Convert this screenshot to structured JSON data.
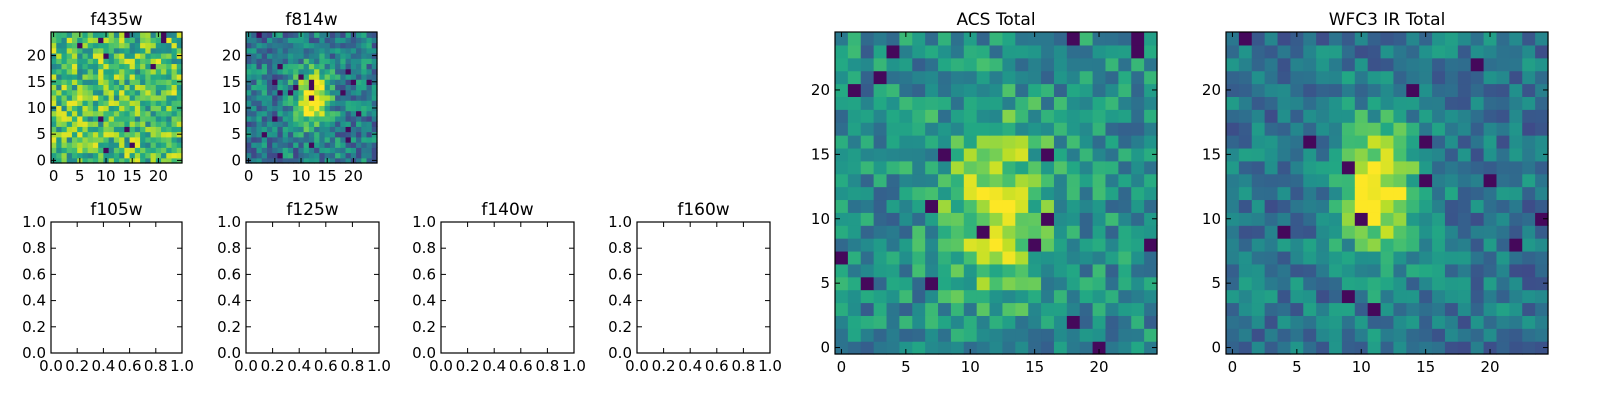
{
  "figure": {
    "background": "#ffffff",
    "colormap": "viridis"
  },
  "chart_data": [
    {
      "type": "heatmap",
      "id": "f435w",
      "title": "f435w",
      "grid": [
        25,
        25
      ],
      "xlim": [
        -0.5,
        24.5
      ],
      "ylim": [
        -0.5,
        24.5
      ],
      "xticks": [
        0,
        5,
        10,
        15,
        20
      ],
      "yticks": [
        0,
        5,
        10,
        15,
        20
      ],
      "xticklabels": [
        "0",
        "5",
        "10",
        "15",
        "20"
      ],
      "yticklabels": [
        "0",
        "5",
        "10",
        "15",
        "20"
      ],
      "pattern": {
        "seed": 11,
        "base": 0.7,
        "noise": 0.55,
        "blob": 0.0,
        "cx": 12,
        "cy": 12,
        "sx": 4,
        "sy": 4,
        "dark": 0.02
      }
    },
    {
      "type": "heatmap",
      "id": "f814w",
      "title": "f814w",
      "grid": [
        25,
        25
      ],
      "xlim": [
        -0.5,
        24.5
      ],
      "ylim": [
        -0.5,
        24.5
      ],
      "xticks": [
        0,
        5,
        10,
        15,
        20
      ],
      "yticks": [
        0,
        5,
        10,
        15,
        20
      ],
      "xticklabels": [
        "0",
        "5",
        "10",
        "15",
        "20"
      ],
      "yticklabels": [
        "0",
        "5",
        "10",
        "15",
        "20"
      ],
      "pattern": {
        "seed": 23,
        "base": 0.42,
        "noise": 0.45,
        "blob": 0.6,
        "cx": 12,
        "cy": 12,
        "sx": 2.5,
        "sy": 4,
        "dark": 0.03
      }
    },
    {
      "type": "empty",
      "id": "f105w",
      "title": "f105w",
      "xlim": [
        0,
        1
      ],
      "ylim": [
        0,
        1
      ],
      "xticklabels": [
        "0.0",
        "0.2",
        "0.4",
        "0.6",
        "0.8",
        "1.0"
      ],
      "yticklabels": [
        "0.0",
        "0.2",
        "0.4",
        "0.6",
        "0.8",
        "1.0"
      ]
    },
    {
      "type": "empty",
      "id": "f125w",
      "title": "f125w",
      "xlim": [
        0,
        1
      ],
      "ylim": [
        0,
        1
      ],
      "xticklabels": [
        "0.0",
        "0.2",
        "0.4",
        "0.6",
        "0.8",
        "1.0"
      ],
      "yticklabels": [
        "0.0",
        "0.2",
        "0.4",
        "0.6",
        "0.8",
        "1.0"
      ]
    },
    {
      "type": "empty",
      "id": "f140w",
      "title": "f140w",
      "xlim": [
        0,
        1
      ],
      "ylim": [
        0,
        1
      ],
      "xticklabels": [
        "0.0",
        "0.2",
        "0.4",
        "0.6",
        "0.8",
        "1.0"
      ],
      "yticklabels": [
        "0.0",
        "0.2",
        "0.4",
        "0.6",
        "0.8",
        "1.0"
      ]
    },
    {
      "type": "empty",
      "id": "f160w",
      "title": "f160w",
      "xlim": [
        0,
        1
      ],
      "ylim": [
        0,
        1
      ],
      "xticklabels": [
        "0.0",
        "0.2",
        "0.4",
        "0.6",
        "0.8",
        "1.0"
      ],
      "yticklabels": [
        "0.0",
        "0.2",
        "0.4",
        "0.6",
        "0.8",
        "1.0"
      ]
    },
    {
      "type": "heatmap",
      "id": "acs_total",
      "title": "ACS Total",
      "grid": [
        25,
        25
      ],
      "xlim": [
        -0.5,
        24.5
      ],
      "ylim": [
        -0.5,
        24.5
      ],
      "xticks": [
        0,
        5,
        10,
        15,
        20
      ],
      "yticks": [
        0,
        5,
        10,
        15,
        20
      ],
      "xticklabels": [
        "0",
        "5",
        "10",
        "15",
        "20"
      ],
      "yticklabels": [
        "0",
        "5",
        "10",
        "15",
        "20"
      ],
      "pattern": {
        "seed": 37,
        "base": 0.48,
        "noise": 0.4,
        "blob": 0.45,
        "cx": 12,
        "cy": 11,
        "sx": 3,
        "sy": 5,
        "dark": 0.025
      }
    },
    {
      "type": "heatmap",
      "id": "wfc3_ir_total",
      "title": "WFC3 IR Total",
      "grid": [
        25,
        25
      ],
      "xlim": [
        -0.5,
        24.5
      ],
      "ylim": [
        -0.5,
        24.5
      ],
      "xticks": [
        0,
        5,
        10,
        15,
        20
      ],
      "yticks": [
        0,
        5,
        10,
        15,
        20
      ],
      "xticklabels": [
        "0",
        "5",
        "10",
        "15",
        "20"
      ],
      "yticklabels": [
        "0",
        "5",
        "10",
        "15",
        "20"
      ],
      "pattern": {
        "seed": 53,
        "base": 0.4,
        "noise": 0.35,
        "blob": 0.6,
        "cx": 11.5,
        "cy": 12,
        "sx": 2.2,
        "sy": 4,
        "dark": 0.03
      }
    }
  ]
}
